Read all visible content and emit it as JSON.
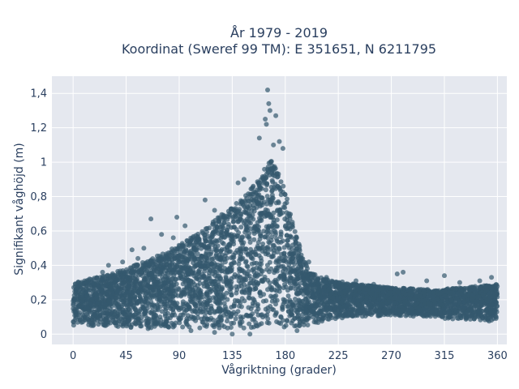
{
  "chart_data": {
    "type": "scatter",
    "title_line1": "År 1979 - 2019",
    "title_line2": "Koordinat (Sweref 99 TM): E 351651, N 6211795",
    "xlabel": "Vågriktning (grader)",
    "ylabel": "Signifikant våghöjd (m)",
    "xlim": [
      -18,
      368
    ],
    "ylim": [
      -0.06,
      1.5
    ],
    "x_ticks": [
      0,
      45,
      90,
      135,
      180,
      225,
      270,
      315,
      360
    ],
    "x_tick_labels": [
      "0",
      "45",
      "90",
      "135",
      "180",
      "225",
      "270",
      "315",
      "360"
    ],
    "y_ticks": [
      0,
      0.2,
      0.4,
      0.6,
      0.8,
      1.0,
      1.2,
      1.4
    ],
    "y_tick_labels": [
      "0",
      "0,2",
      "0,4",
      "0,6",
      "0,8",
      "1",
      "1,2",
      "1,4"
    ],
    "grid": true,
    "legend": "none",
    "marker_color": "#34586e",
    "plot_bg": "#e5e8ef",
    "envelope": {
      "x": [
        0,
        20,
        45,
        70,
        90,
        110,
        130,
        145,
        155,
        162,
        167,
        172,
        180,
        190,
        200,
        215,
        240,
        270,
        300,
        330,
        360
      ],
      "y_max": [
        0.3,
        0.33,
        0.38,
        0.45,
        0.52,
        0.6,
        0.72,
        0.8,
        0.88,
        0.96,
        1.02,
        0.97,
        0.84,
        0.56,
        0.36,
        0.32,
        0.29,
        0.27,
        0.26,
        0.27,
        0.29
      ],
      "y_min": [
        0.05,
        0.04,
        0.03,
        0.03,
        0.03,
        0.03,
        0.03,
        0.03,
        0.03,
        0.03,
        0.03,
        0.03,
        0.03,
        0.04,
        0.05,
        0.08,
        0.1,
        0.11,
        0.1,
        0.08,
        0.07
      ]
    },
    "outliers": [
      [
        165,
        1.42
      ],
      [
        166,
        1.34
      ],
      [
        167,
        1.3
      ],
      [
        163,
        1.25
      ],
      [
        172,
        1.27
      ],
      [
        164,
        1.22
      ],
      [
        158,
        1.14
      ],
      [
        175,
        1.12
      ],
      [
        170,
        1.1
      ],
      [
        178,
        1.08
      ],
      [
        145,
        0.9
      ],
      [
        140,
        0.88
      ],
      [
        112,
        0.78
      ],
      [
        120,
        0.72
      ],
      [
        88,
        0.68
      ],
      [
        66,
        0.67
      ],
      [
        95,
        0.63
      ],
      [
        75,
        0.58
      ],
      [
        85,
        0.56
      ],
      [
        60,
        0.5
      ],
      [
        50,
        0.49
      ],
      [
        42,
        0.42
      ],
      [
        55,
        0.44
      ],
      [
        30,
        0.4
      ],
      [
        25,
        0.36
      ],
      [
        200,
        0.42
      ],
      [
        215,
        0.33
      ],
      [
        240,
        0.31
      ],
      [
        255,
        0.29
      ],
      [
        275,
        0.35
      ],
      [
        280,
        0.36
      ],
      [
        300,
        0.31
      ],
      [
        315,
        0.34
      ],
      [
        328,
        0.3
      ],
      [
        345,
        0.31
      ],
      [
        355,
        0.33
      ],
      [
        135,
        0.0
      ],
      [
        120,
        0.01
      ],
      [
        100,
        0.02
      ],
      [
        150,
        0.0
      ],
      [
        190,
        0.02
      ],
      [
        10,
        0.3
      ]
    ]
  }
}
